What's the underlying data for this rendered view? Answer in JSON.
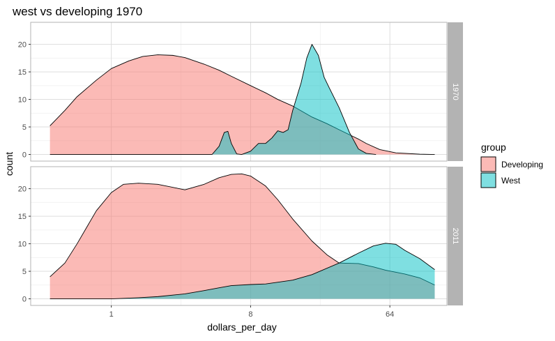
{
  "chart_data": {
    "type": "area",
    "title": "west vs developing 1970",
    "xlabel": "dollars_per_day",
    "ylabel": "count",
    "x_scale": "log2",
    "x_ticks": [
      1,
      8,
      64
    ],
    "x_tick_labels": [
      "1",
      "8",
      "64"
    ],
    "xlim": [
      0.3,
      150
    ],
    "y_ticks": [
      0,
      5,
      10,
      15,
      20
    ],
    "y_tick_labels": [
      "0",
      "5",
      "10",
      "15",
      "20"
    ],
    "legend": {
      "title": "group",
      "placement": "right",
      "entries": [
        {
          "name": "Developing",
          "color": "#F8766D"
        },
        {
          "name": "West",
          "color": "#00BFC4"
        }
      ]
    },
    "panels": [
      {
        "strip_label": "1970",
        "ylim": [
          -1.2,
          24
        ],
        "series": [
          {
            "name": "Developing",
            "color": "#F8766D",
            "x": [
              0.4,
              0.5,
              0.6,
              0.8,
              1.0,
              1.3,
              1.6,
              2.0,
              2.5,
              3.0,
              4.0,
              5.0,
              6.0,
              8.0,
              10.0,
              12.0,
              15.0,
              20.0,
              25.0,
              30.0,
              40.0,
              45.0,
              55.0,
              70.0,
              100,
              125
            ],
            "y": [
              5.2,
              8.0,
              10.5,
              13.5,
              15.6,
              17.0,
              17.8,
              18.1,
              18.0,
              17.6,
              16.4,
              15.3,
              14.2,
              12.5,
              11.2,
              10.0,
              8.8,
              6.8,
              5.6,
              4.5,
              2.8,
              2.0,
              0.9,
              0.3,
              0.05,
              0.0
            ]
          },
          {
            "name": "West",
            "color": "#00BFC4",
            "x": [
              0.4,
              4.5,
              5.0,
              5.4,
              5.7,
              6.0,
              6.5,
              7.0,
              8.0,
              9.0,
              10.0,
              11.0,
              12.0,
              13.0,
              14.0,
              15.0,
              17.0,
              18.5,
              20.0,
              22.0,
              24.0,
              26.0,
              30.0,
              35.0,
              40.0,
              45.0,
              52.0
            ],
            "y": [
              0.0,
              0.0,
              1.5,
              4.0,
              4.2,
              2.0,
              0.1,
              0.0,
              0.6,
              2.0,
              2.0,
              3.0,
              4.3,
              4.0,
              4.5,
              8.0,
              13.0,
              17.5,
              20.0,
              18.0,
              14.0,
              12.0,
              8.5,
              4.0,
              1.0,
              0.2,
              0.0
            ]
          }
        ]
      },
      {
        "strip_label": "2011",
        "ylim": [
          -1.2,
          24
        ],
        "series": [
          {
            "name": "Developing",
            "color": "#F8766D",
            "x": [
              0.4,
              0.5,
              0.6,
              0.8,
              1.0,
              1.2,
              1.5,
              2.0,
              3.0,
              4.0,
              5.0,
              6.0,
              7.0,
              8.0,
              10.0,
              12.0,
              15.0,
              20.0,
              25.0,
              30.0,
              40.0,
              50.0,
              60.0,
              80.0,
              100,
              125
            ],
            "y": [
              4.0,
              6.5,
              10.0,
              16.0,
              19.3,
              20.8,
              21.0,
              20.8,
              19.8,
              20.8,
              22.0,
              22.6,
              22.7,
              22.3,
              20.5,
              18.0,
              14.5,
              10.5,
              8.0,
              6.5,
              6.4,
              5.8,
              5.2,
              4.5,
              3.8,
              2.5
            ]
          },
          {
            "name": "West",
            "color": "#00BFC4",
            "x": [
              0.4,
              1.0,
              1.5,
              2.0,
              3.0,
              4.0,
              5.0,
              6.0,
              8.0,
              10.0,
              15.0,
              20.0,
              30.0,
              40.0,
              50.0,
              60.0,
              70.0,
              80.0,
              100,
              125
            ],
            "y": [
              0.0,
              0.0,
              0.2,
              0.4,
              0.9,
              1.5,
              2.0,
              2.4,
              2.6,
              2.7,
              3.4,
              4.4,
              6.5,
              8.3,
              9.6,
              10.1,
              9.9,
              8.8,
              7.3,
              5.3
            ]
          }
        ]
      }
    ]
  }
}
